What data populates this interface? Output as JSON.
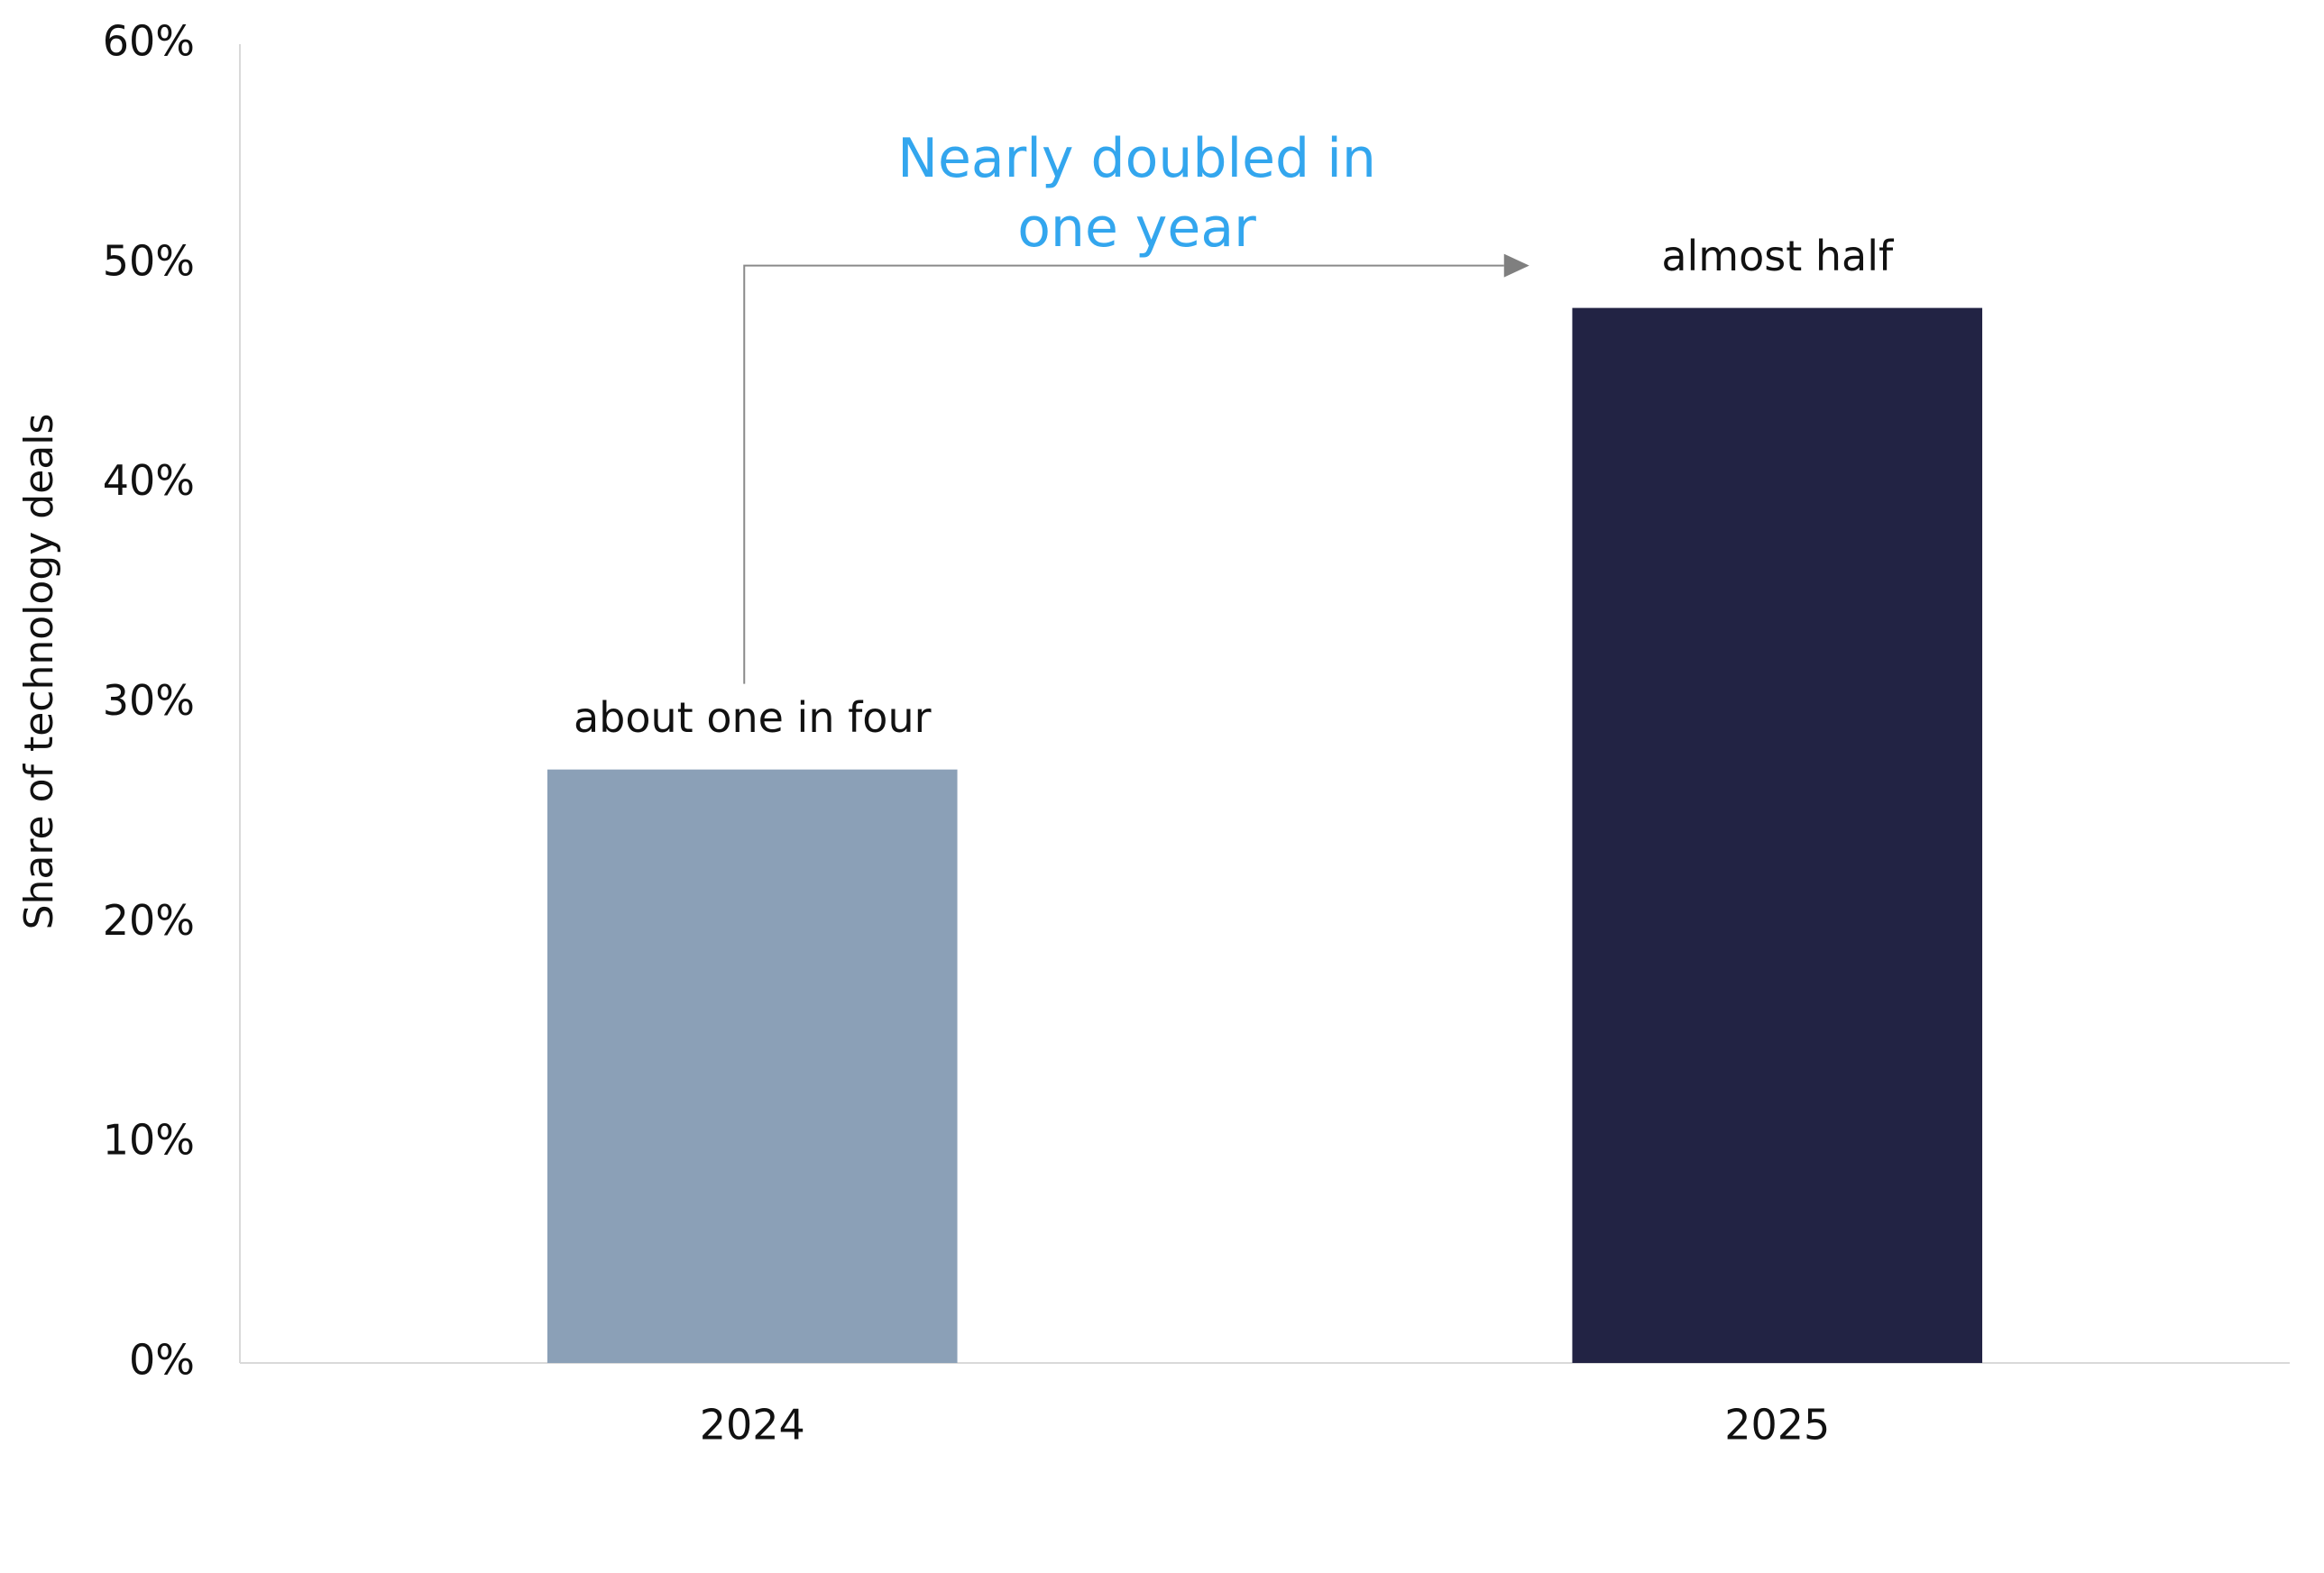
{
  "chart_data": {
    "type": "bar",
    "y_axis_label": "Share of technology deals",
    "categories": [
      "2024",
      "2025"
    ],
    "values": [
      27,
      48
    ],
    "colors": [
      "#8ba0b7",
      "#222344"
    ],
    "annotations": [
      "about one in four",
      "almost half"
    ],
    "callout": [
      "Nearly doubled in",
      "one year"
    ],
    "ylim": [
      0,
      60
    ],
    "yticks": [
      {
        "value": 0,
        "label": "0%"
      },
      {
        "value": 10,
        "label": "10%"
      },
      {
        "value": 20,
        "label": "20%"
      },
      {
        "value": 30,
        "label": "30%"
      },
      {
        "value": 40,
        "label": "40%"
      },
      {
        "value": 50,
        "label": "50%"
      },
      {
        "value": 60,
        "label": "60%"
      }
    ],
    "grid": false
  }
}
